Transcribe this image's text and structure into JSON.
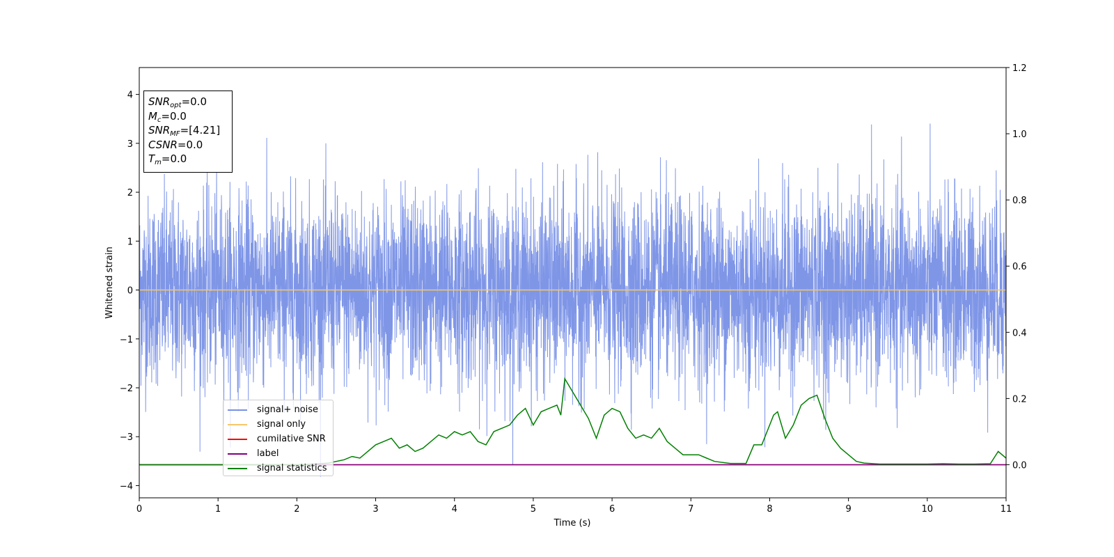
{
  "chart_data": {
    "type": "line",
    "title": "",
    "xlabel": "Time (s)",
    "ylabel": "Whitened strain",
    "xlim": [
      0,
      11
    ],
    "ylim": [
      -4.25,
      4.55
    ],
    "y2lim": [
      -0.1,
      1.2
    ],
    "xticks": [
      "0",
      "1",
      "2",
      "3",
      "4",
      "5",
      "6",
      "7",
      "8",
      "9",
      "10",
      "11"
    ],
    "yticks": [
      "−4",
      "−3",
      "−2",
      "−1",
      "0",
      "1",
      "2",
      "3",
      "4"
    ],
    "y2ticks": [
      "0.0",
      "0.2",
      "0.4",
      "0.6",
      "0.8",
      "1.0",
      "1.2"
    ],
    "legend_placement": "lower-left",
    "series": [
      {
        "name": "signal+ noise",
        "color": "#7890e6",
        "axis": "left",
        "distribution": "noise",
        "mean": 0.0,
        "std": 0.95,
        "range": [
          -3.9,
          3.9
        ]
      },
      {
        "name": "signal only",
        "color": "#f5c76a",
        "axis": "left",
        "x": [
          0,
          11
        ],
        "y": [
          0.0,
          0.0
        ]
      },
      {
        "name": "cumilative SNR",
        "color": "#ff0000",
        "axis": "right",
        "x": [
          0,
          11
        ],
        "y": [
          0.0,
          0.0
        ]
      },
      {
        "name": "label",
        "color": "#800080",
        "axis": "right",
        "x": [
          0,
          11
        ],
        "y": [
          0.0,
          0.0
        ]
      },
      {
        "name": "signal statistics",
        "color": "#008000",
        "axis": "right",
        "x": [
          0,
          0.5,
          1,
          1.5,
          2,
          2.2,
          2.4,
          2.6,
          2.7,
          2.8,
          2.9,
          3,
          3.1,
          3.2,
          3.3,
          3.4,
          3.5,
          3.6,
          3.7,
          3.8,
          3.9,
          4,
          4.1,
          4.2,
          4.3,
          4.4,
          4.5,
          4.6,
          4.7,
          4.8,
          4.9,
          5,
          5.1,
          5.2,
          5.3,
          5.35,
          5.4,
          5.5,
          5.6,
          5.7,
          5.8,
          5.9,
          6,
          6.1,
          6.2,
          6.3,
          6.4,
          6.5,
          6.6,
          6.7,
          6.8,
          6.9,
          7,
          7.1,
          7.2,
          7.3,
          7.5,
          7.7,
          7.8,
          7.9,
          8,
          8.05,
          8.1,
          8.2,
          8.3,
          8.4,
          8.5,
          8.6,
          8.7,
          8.8,
          8.9,
          9,
          9.1,
          9.2,
          9.4,
          9.6,
          9.8,
          10,
          10.2,
          10.4,
          10.6,
          10.8,
          10.9,
          11
        ],
        "y": [
          0,
          0,
          0,
          0,
          0,
          0.002,
          0.005,
          0.015,
          0.025,
          0.02,
          0.04,
          0.06,
          0.07,
          0.08,
          0.05,
          0.06,
          0.04,
          0.05,
          0.07,
          0.09,
          0.08,
          0.1,
          0.09,
          0.1,
          0.07,
          0.06,
          0.1,
          0.11,
          0.12,
          0.15,
          0.17,
          0.12,
          0.16,
          0.17,
          0.18,
          0.15,
          0.26,
          0.22,
          0.18,
          0.14,
          0.08,
          0.15,
          0.17,
          0.16,
          0.11,
          0.08,
          0.09,
          0.08,
          0.11,
          0.07,
          0.05,
          0.03,
          0.03,
          0.03,
          0.02,
          0.01,
          0.004,
          0.004,
          0.06,
          0.06,
          0.12,
          0.15,
          0.16,
          0.08,
          0.12,
          0.18,
          0.2,
          0.21,
          0.14,
          0.08,
          0.05,
          0.03,
          0.01,
          0.005,
          0.002,
          0.002,
          0.002,
          0.002,
          0.003,
          0.002,
          0.002,
          0.003,
          0.04,
          0.02
        ]
      }
    ]
  },
  "info_box": {
    "snr_opt": {
      "sym": "SNR",
      "sub": "opt",
      "value": "=0.0"
    },
    "mc": {
      "sym": "M",
      "sub": "c",
      "value": "=0.0"
    },
    "snr_mf": {
      "sym": "SNR",
      "sub": "MF",
      "value": "=[4.21]"
    },
    "csnr": {
      "sym": "CSNR",
      "value": "=0.0"
    },
    "tm": {
      "sym": "T",
      "sub": "m",
      "value": "=0.0"
    }
  }
}
